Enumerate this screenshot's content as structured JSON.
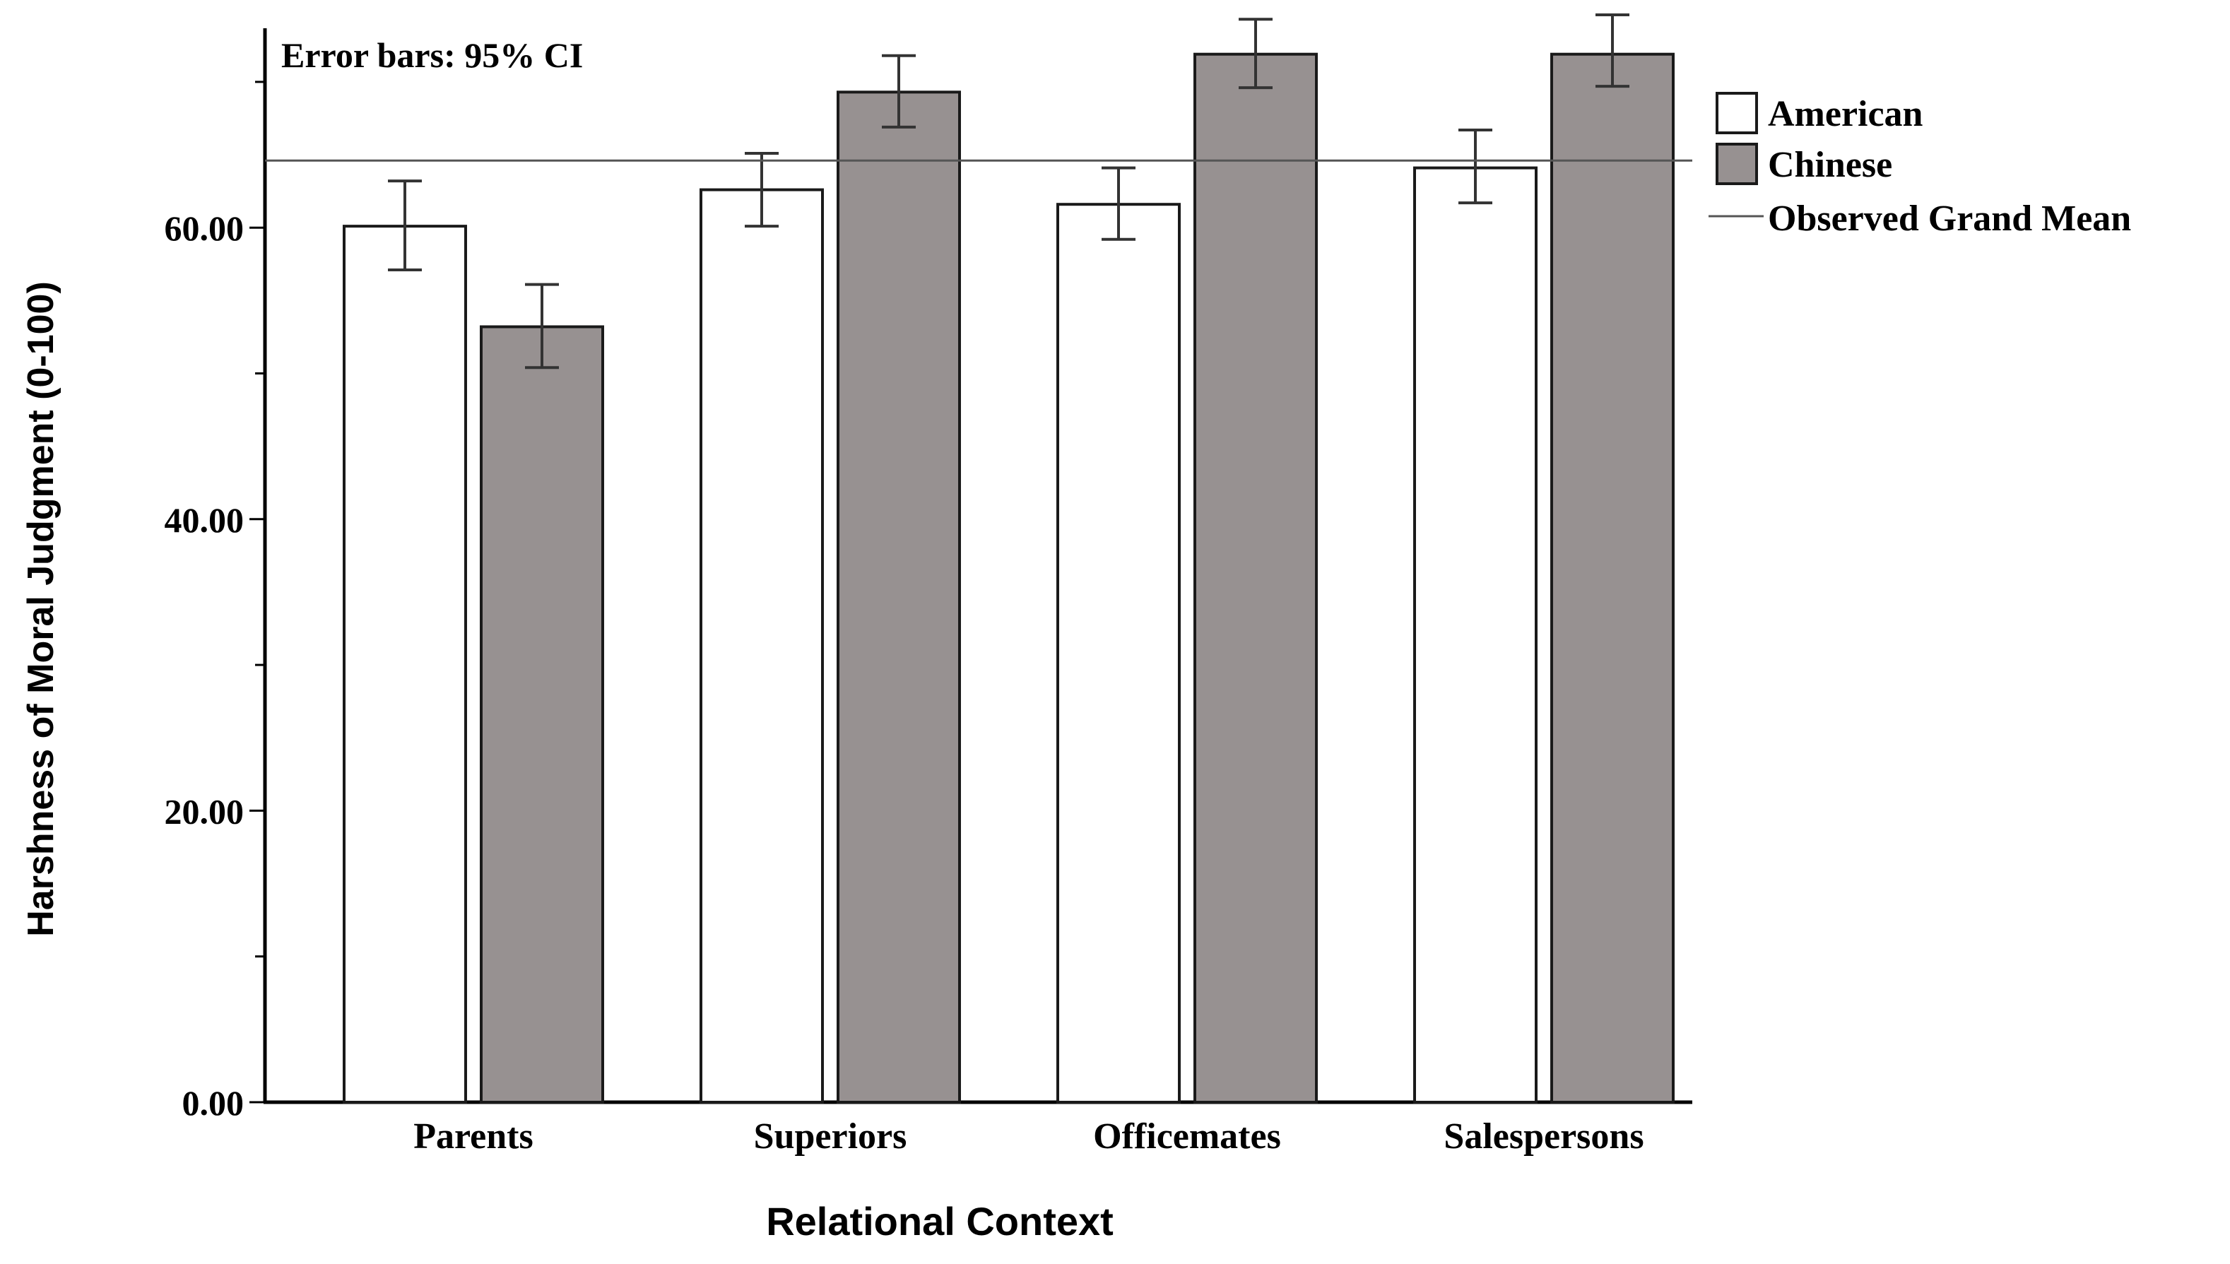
{
  "chart_data": {
    "type": "bar",
    "annotation": "Error bars: 95% CI",
    "xlabel": "Relational Context",
    "ylabel": "Harshness of Moral Judgment (0-100)",
    "ylim": [
      0,
      74
    ],
    "yticks": [
      0,
      20,
      40,
      60
    ],
    "ytick_labels": [
      "0.00",
      "20.00",
      "40.00",
      "60.00"
    ],
    "minor_ticks": [
      10,
      30,
      50,
      70
    ],
    "grid": false,
    "legend_position": "top-right",
    "categories": [
      "Parents",
      "Superiors",
      "Officemates",
      "Salespersons"
    ],
    "series": [
      {
        "name": "American",
        "color": "#ffffff",
        "values": [
          60.1,
          62.6,
          61.6,
          64.1
        ],
        "ci_low": [
          57.1,
          60.1,
          59.2,
          61.7
        ],
        "ci_high": [
          63.2,
          65.1,
          64.1,
          66.7
        ]
      },
      {
        "name": "Chinese",
        "color": "#979191",
        "values": [
          53.2,
          69.3,
          71.9,
          71.9
        ],
        "ci_low": [
          50.4,
          66.9,
          69.6,
          69.7
        ],
        "ci_high": [
          56.1,
          71.8,
          74.3,
          74.6
        ]
      }
    ],
    "reference_line": {
      "name": "Observed Grand Mean",
      "value": 64.6
    }
  }
}
